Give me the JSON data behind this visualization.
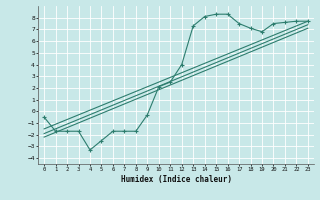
{
  "xlabel": "Humidex (Indice chaleur)",
  "bg_color": "#c8e8e8",
  "grid_color": "#ffffff",
  "line_color": "#2d7d6e",
  "xlim": [
    -0.5,
    23.5
  ],
  "ylim": [
    -4.5,
    9.0
  ],
  "xticks": [
    0,
    1,
    2,
    3,
    4,
    5,
    6,
    7,
    8,
    9,
    10,
    11,
    12,
    13,
    14,
    15,
    16,
    17,
    18,
    19,
    20,
    21,
    22,
    23
  ],
  "yticks": [
    -4,
    -3,
    -2,
    -1,
    0,
    1,
    2,
    3,
    4,
    5,
    6,
    7,
    8
  ],
  "curve1_x": [
    0,
    1,
    2,
    3,
    4,
    5,
    6,
    7,
    8,
    9,
    10,
    11,
    12,
    13,
    14,
    15,
    16,
    17,
    18,
    19,
    20,
    21,
    22,
    23
  ],
  "curve1_y": [
    -0.5,
    -1.7,
    -1.7,
    -1.7,
    -3.3,
    -2.5,
    -1.7,
    -1.7,
    -1.7,
    -0.3,
    2.1,
    2.5,
    4.0,
    7.3,
    8.1,
    8.3,
    8.3,
    7.5,
    7.1,
    6.8,
    7.5,
    7.6,
    7.7,
    7.7
  ],
  "line1_x": [
    0,
    23
  ],
  "line1_y": [
    -1.5,
    7.7
  ],
  "line2_x": [
    0,
    23
  ],
  "line2_y": [
    -1.9,
    7.4
  ],
  "line3_x": [
    0,
    23
  ],
  "line3_y": [
    -2.2,
    7.1
  ]
}
